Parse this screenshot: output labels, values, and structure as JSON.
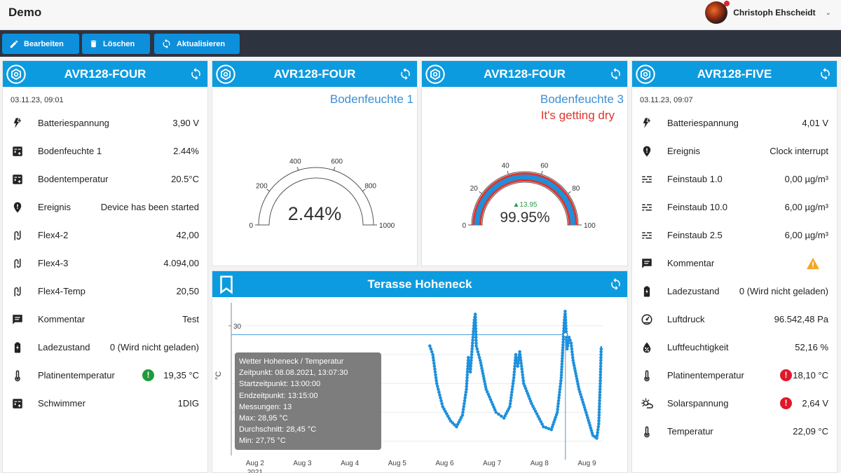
{
  "app": {
    "title": "Demo",
    "user": {
      "name": "Christoph Ehscheidt"
    }
  },
  "toolbar": {
    "edit_label": "Bearbeiten",
    "delete_label": "Löschen",
    "refresh_label": "Aktualisieren"
  },
  "card1": {
    "title": "AVR128-FOUR",
    "timestamp": "03.11.23, 09:01",
    "rows": [
      {
        "icon": "bolt-icon",
        "label": "Batteriespannung",
        "value": "3,90 V"
      },
      {
        "icon": "sensor-icon",
        "label": "Bodenfeuchte 1",
        "value": "2.44%"
      },
      {
        "icon": "sensor-icon",
        "label": "Bodentemperatur",
        "value": "20.5°C"
      },
      {
        "icon": "location-pin-icon",
        "label": "Ereignis",
        "value": "Device has been started"
      },
      {
        "icon": "flex-icon",
        "label": "Flex4-2",
        "value": "42,00"
      },
      {
        "icon": "flex-icon",
        "label": "Flex4-3",
        "value": "4.094,00"
      },
      {
        "icon": "flex-icon",
        "label": "Flex4-Temp",
        "value": "20,50"
      },
      {
        "icon": "comment-icon",
        "label": "Kommentar",
        "value": "Test"
      },
      {
        "icon": "battery-icon",
        "label": "Ladezustand",
        "value": "0 (Wird nicht geladen)"
      },
      {
        "icon": "thermometer-icon",
        "label": "Platinentemperatur",
        "value": "19,35 °C",
        "status": "ok"
      },
      {
        "icon": "sensor-icon",
        "label": "Schwimmer",
        "value": "1DIG"
      }
    ]
  },
  "gauge1": {
    "title": "AVR128-FOUR",
    "subtitle": "Bodenfeuchte 1",
    "value_label": "2.44%",
    "value": 2.44,
    "min": 0,
    "max": 1000,
    "ticks": [
      "0",
      "200",
      "400",
      "600",
      "800",
      "1000"
    ]
  },
  "gauge2": {
    "title": "AVR128-FOUR",
    "subtitle": "Bodenfeuchte 3",
    "warning": "It's getting dry",
    "value_label": "99.95%",
    "value": 99.95,
    "delta": "▲13.95",
    "min": 0,
    "max": 100,
    "ticks": [
      "0",
      "20",
      "40",
      "60",
      "80",
      "100"
    ],
    "colors": {
      "fill": "#1e90dc",
      "threshold": "#e0342c"
    }
  },
  "card4": {
    "title": "AVR128-FIVE",
    "timestamp": "03.11.23, 09:07",
    "rows": [
      {
        "icon": "bolt-icon",
        "label": "Batteriespannung",
        "value": "4,01 V"
      },
      {
        "icon": "location-pin-icon",
        "label": "Ereignis",
        "value": "Clock interrupt"
      },
      {
        "icon": "dust-icon",
        "label": "Feinstaub 1.0",
        "value": "0,00 µg/m³"
      },
      {
        "icon": "dust-icon",
        "label": "Feinstaub 10.0",
        "value": "6,00 µg/m³"
      },
      {
        "icon": "dust-icon",
        "label": "Feinstaub 2.5",
        "value": "6,00 µg/m³"
      },
      {
        "icon": "comment-icon",
        "label": "Kommentar",
        "value": "",
        "status": "warning"
      },
      {
        "icon": "battery-icon",
        "label": "Ladezustand",
        "value": "0 (Wird nicht geladen)"
      },
      {
        "icon": "gauge-icon",
        "label": "Luftdruck",
        "value": "96.542,48 Pa"
      },
      {
        "icon": "humidity-icon",
        "label": "Luftfeuchtigkeit",
        "value": "52,16 %"
      },
      {
        "icon": "thermometer-icon",
        "label": "Platinentemperatur",
        "value": "18,10 °C",
        "status": "error"
      },
      {
        "icon": "sun-icon",
        "label": "Solarspannung",
        "value": "2,64 V",
        "status": "error"
      },
      {
        "icon": "thermometer-icon",
        "label": "Temperatur",
        "value": "22,09 °C"
      }
    ]
  },
  "chart_card": {
    "title": "Terasse Hoheneck",
    "tooltip": {
      "title": "Wetter Hoheneck / Temperatur",
      "lines": [
        "Zeitpunkt: 08.08.2021, 13:07:30",
        "Startzeitpunkt: 13:00:00",
        "Endzeitpunkt: 13:15:00",
        "Messungen: 13",
        "Max: 28,95 °C",
        "Durchschnitt: 28,45 °C",
        "Min: 27,75 °C"
      ]
    }
  },
  "chart_data": {
    "type": "line",
    "ylabel": "°C",
    "ytick_labels": [
      "30"
    ],
    "xtick_labels": [
      "Aug 2",
      "Aug 3",
      "Aug 4",
      "Aug 5",
      "Aug 6",
      "Aug 7",
      "Aug 8",
      "Aug 9"
    ],
    "year_label": "2021",
    "xlim": [
      "2021-08-01T12:00",
      "2021-08-09T08:00"
    ],
    "ylim": [
      8,
      34
    ],
    "series": [
      {
        "color": "#1e90dc",
        "points": [
          [
            "2021-08-05T16:30",
            26.5
          ],
          [
            "2021-08-05T18:00",
            25.0
          ],
          [
            "2021-08-05T20:00",
            20.0
          ],
          [
            "2021-08-05T23:00",
            16.0
          ],
          [
            "2021-08-06T03:00",
            13.5
          ],
          [
            "2021-08-06T06:00",
            12.5
          ],
          [
            "2021-08-06T09:00",
            14.5
          ],
          [
            "2021-08-06T11:00",
            19.0
          ],
          [
            "2021-08-06T12:00",
            24.5
          ],
          [
            "2021-08-06T13:00",
            22.0
          ],
          [
            "2021-08-06T14:00",
            26.5
          ],
          [
            "2021-08-06T15:00",
            31.0
          ],
          [
            "2021-08-06T15:30",
            32.0
          ],
          [
            "2021-08-06T16:00",
            26.5
          ],
          [
            "2021-08-06T18:00",
            24.0
          ],
          [
            "2021-08-06T21:00",
            19.0
          ],
          [
            "2021-08-07T02:00",
            15.0
          ],
          [
            "2021-08-07T06:00",
            14.0
          ],
          [
            "2021-08-07T09:00",
            16.0
          ],
          [
            "2021-08-07T11:00",
            21.0
          ],
          [
            "2021-08-07T12:00",
            25.0
          ],
          [
            "2021-08-07T13:00",
            23.0
          ],
          [
            "2021-08-07T14:00",
            25.5
          ],
          [
            "2021-08-07T16:00",
            20.0
          ],
          [
            "2021-08-07T20:00",
            16.5
          ],
          [
            "2021-08-08T02:00",
            12.5
          ],
          [
            "2021-08-08T06:00",
            12.0
          ],
          [
            "2021-08-08T09:00",
            15.0
          ],
          [
            "2021-08-08T11:00",
            21.0
          ],
          [
            "2021-08-08T12:30",
            30.5
          ],
          [
            "2021-08-08T13:00",
            32.5
          ],
          [
            "2021-08-08T13:30",
            29.0
          ],
          [
            "2021-08-08T14:00",
            26.0
          ],
          [
            "2021-08-08T15:00",
            28.0
          ],
          [
            "2021-08-08T16:00",
            27.0
          ],
          [
            "2021-08-08T17:00",
            24.0
          ],
          [
            "2021-08-08T20:00",
            19.0
          ],
          [
            "2021-08-09T00:00",
            14.5
          ],
          [
            "2021-08-09T03:00",
            11.0
          ],
          [
            "2021-08-09T05:00",
            10.5
          ],
          [
            "2021-08-09T06:00",
            13.0
          ],
          [
            "2021-08-09T06:45",
            20.0
          ],
          [
            "2021-08-09T07:15",
            26.5
          ]
        ]
      }
    ],
    "hover_marker": {
      "x": "2021-08-08T13:07:30",
      "y": 28.45
    }
  }
}
